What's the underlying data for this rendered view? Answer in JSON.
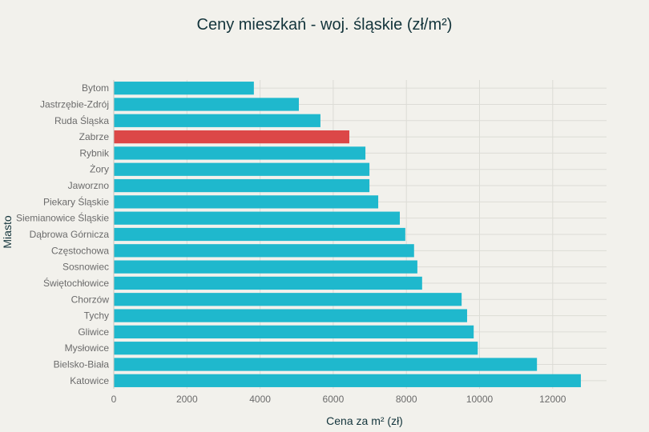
{
  "chart_data": {
    "type": "bar",
    "orientation": "horizontal",
    "title": "Ceny mieszkań - woj. śląskie (zł/m²)",
    "xlabel": "Cena za m² (zł)",
    "ylabel": "Miasto",
    "xlim": [
      0,
      13500
    ],
    "xticks": [
      0,
      2000,
      4000,
      6000,
      8000,
      10000,
      12000
    ],
    "grid": true,
    "categories": [
      "Bytom",
      "Jastrzębie-Zdrój",
      "Ruda Śląska",
      "Zabrze",
      "Rybnik",
      "Żory",
      "Jaworzno",
      "Piekary Śląskie",
      "Siemianowice Śląskie",
      "Dąbrowa Górnicza",
      "Częstochowa",
      "Sosnowiec",
      "Świętochłowice",
      "Chorzów",
      "Tychy",
      "Gliwice",
      "Mysłowice",
      "Bielsko-Biała",
      "Katowice"
    ],
    "values": [
      3830,
      5060,
      5650,
      6440,
      6880,
      6990,
      6990,
      7230,
      7820,
      7970,
      8210,
      8300,
      8430,
      9510,
      9660,
      9840,
      9950,
      11570,
      12770
    ],
    "highlight": "Zabrze",
    "colors": {
      "default": "#1fb8cd",
      "highlight": "#dc4747",
      "title": "#13343b",
      "grid": "#dcdcd6"
    }
  }
}
